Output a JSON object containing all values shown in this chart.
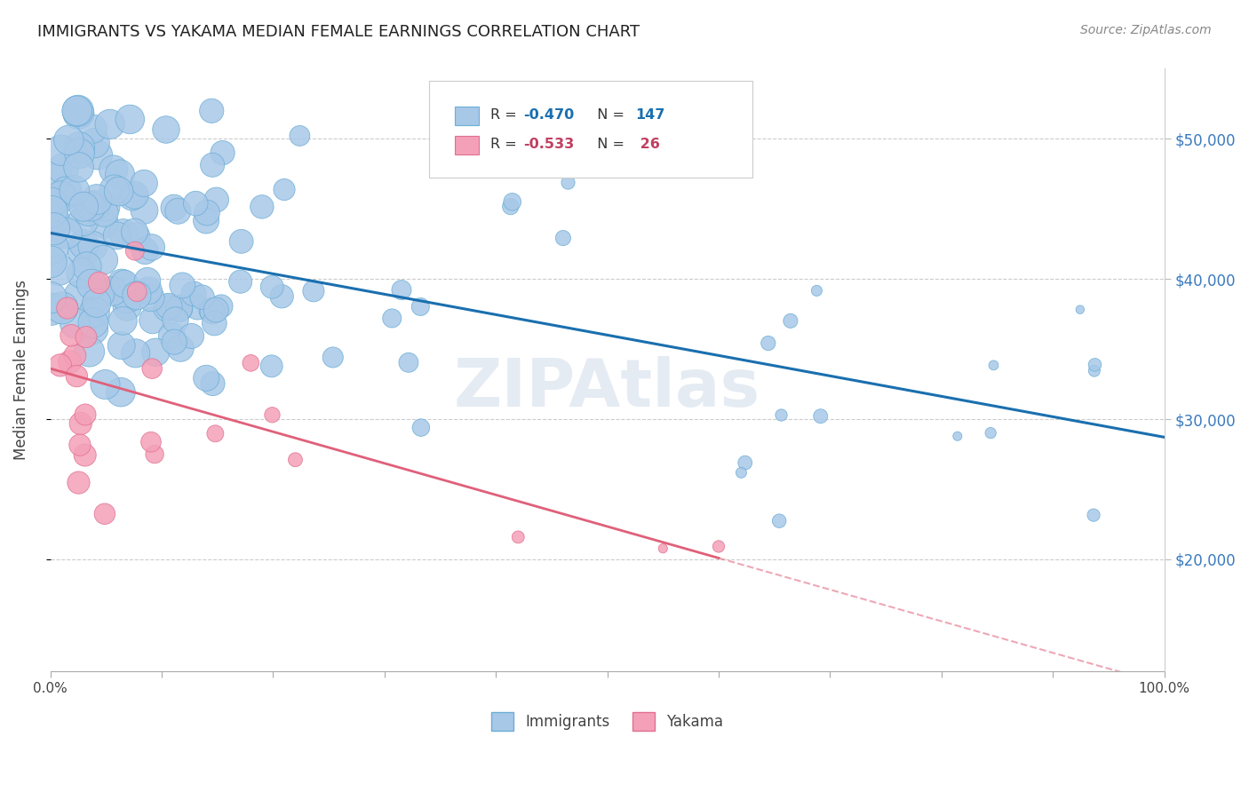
{
  "title": "IMMIGRANTS VS YAKAMA MEDIAN FEMALE EARNINGS CORRELATION CHART",
  "source": "Source: ZipAtlas.com",
  "ylabel": "Median Female Earnings",
  "y_ticks": [
    20000,
    30000,
    40000,
    50000
  ],
  "y_tick_labels": [
    "$20,000",
    "$30,000",
    "$40,000",
    "$50,000"
  ],
  "immigrants_color": "#a8c8e8",
  "immigrants_edge": "#6baed6",
  "yakama_color": "#f4a0b8",
  "yakama_edge": "#e07090",
  "trend_immigrants_color": "#1a6faf",
  "trend_yakama_color": "#e0607a",
  "watermark": "ZIPAtlas",
  "background_color": "#ffffff",
  "grid_color": "#cccccc",
  "n_immigrants": 147,
  "n_yakama": 26,
  "r_immigrants": -0.47,
  "r_yakama": -0.533
}
